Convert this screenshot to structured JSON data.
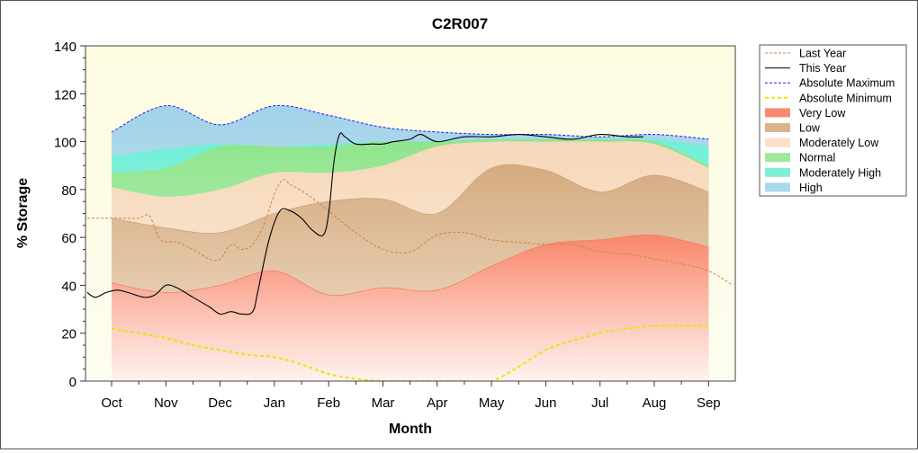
{
  "chart_data": {
    "type": "area",
    "title": "C2R007",
    "xlabel": "Month",
    "ylabel": "% Storage",
    "ylim": [
      0,
      140
    ],
    "yticks": [
      0,
      20,
      40,
      60,
      80,
      100,
      120,
      140
    ],
    "categories": [
      "Oct",
      "Nov",
      "Dec",
      "Jan",
      "Feb",
      "Mar",
      "Apr",
      "May",
      "Jun",
      "Jul",
      "Aug",
      "Sep"
    ],
    "grid": false,
    "legend_position": "right",
    "legend": [
      {
        "label": "Last Year",
        "kind": "line",
        "color": "#c8864a",
        "dash": "3,2"
      },
      {
        "label": "This Year",
        "kind": "line",
        "color": "#000000",
        "dash": ""
      },
      {
        "label": "Absolute Maximum",
        "kind": "line",
        "color": "#1a1aff",
        "dash": "3,2"
      },
      {
        "label": "Absolute Minimum",
        "kind": "line",
        "color": "#e6e600",
        "dash": "4,3"
      },
      {
        "label": "Very Low",
        "kind": "band",
        "color": "#fa8a6e"
      },
      {
        "label": "Low",
        "kind": "band",
        "color": "#d9b48c"
      },
      {
        "label": "Moderately Low",
        "kind": "band",
        "color": "#fde0c8"
      },
      {
        "label": "Normal",
        "kind": "band",
        "color": "#9fe89a"
      },
      {
        "label": "Moderately High",
        "kind": "band",
        "color": "#7ff0d8"
      },
      {
        "label": "High",
        "kind": "band",
        "color": "#a8d8ec"
      }
    ],
    "band_x": [
      0,
      1,
      2,
      3,
      4,
      5,
      6,
      7,
      8,
      9,
      10,
      11
    ],
    "bands": {
      "very_low_top": [
        41,
        37,
        40,
        46,
        36,
        39,
        38,
        48,
        57,
        59,
        61,
        56
      ],
      "low_top": [
        68,
        64,
        62,
        70,
        75,
        76,
        70,
        89,
        88,
        79,
        86,
        79
      ],
      "moderately_low_top": [
        81,
        77,
        80,
        87,
        87,
        90,
        98,
        100,
        100,
        100,
        99,
        89
      ],
      "normal_top": [
        87,
        89,
        98,
        98,
        98,
        100,
        100,
        101,
        101,
        101,
        100,
        90
      ],
      "moderately_high_top": [
        94,
        97,
        99,
        98,
        99,
        100,
        100,
        101,
        101,
        101,
        101,
        98
      ],
      "high_top": [
        104,
        115,
        107,
        115,
        111,
        106,
        104,
        103,
        103,
        102,
        103,
        101
      ]
    },
    "series": [
      {
        "name": "Last Year",
        "x": [
          -0.45,
          0,
          0.3,
          0.5,
          0.7,
          0.9,
          1.2,
          1.5,
          1.8,
          2.0,
          2.2,
          2.4,
          2.6,
          2.8,
          3.0,
          3.15,
          3.3,
          3.6,
          4.0,
          4.5,
          5.0,
          5.5,
          6.0,
          6.5,
          7.0,
          7.5,
          8.0,
          8.5,
          9.0,
          9.5,
          10.0,
          10.5,
          11.0,
          11.45
        ],
        "values": [
          68,
          68,
          68,
          68,
          69,
          59,
          58,
          55,
          51,
          51,
          57,
          55,
          57,
          65,
          78,
          84,
          82,
          78,
          71,
          62,
          55,
          54,
          61,
          62,
          59,
          58,
          57,
          57,
          54,
          53,
          51,
          49,
          46,
          40
        ]
      },
      {
        "name": "This Year",
        "x": [
          -0.45,
          -0.3,
          -0.1,
          0.1,
          0.3,
          0.6,
          0.8,
          1.0,
          1.2,
          1.5,
          1.8,
          2.0,
          2.2,
          2.4,
          2.6,
          2.7,
          2.9,
          3.1,
          3.3,
          3.5,
          3.7,
          3.9,
          4.0,
          4.1,
          4.2,
          4.3,
          4.5,
          4.8,
          5.0,
          5.2,
          5.5,
          5.7,
          6.0,
          6.5,
          7.0,
          7.5,
          8.0,
          8.5,
          9.0,
          9.5,
          9.8
        ],
        "values": [
          37,
          35,
          37,
          38,
          37,
          35,
          36,
          40,
          39,
          35,
          31,
          28,
          29,
          28,
          29,
          38,
          59,
          71,
          71,
          68,
          63,
          61,
          70,
          92,
          103,
          102,
          99,
          99,
          99,
          100,
          101,
          103,
          100,
          102,
          102,
          103,
          102,
          101,
          103,
          102,
          102
        ]
      },
      {
        "name": "Absolute Maximum",
        "x": [
          0,
          1,
          2,
          3,
          4,
          5,
          6,
          7,
          8,
          9,
          10,
          11
        ],
        "values": [
          104,
          115,
          107,
          115,
          111,
          106,
          104,
          103,
          103,
          102,
          103,
          101
        ]
      },
      {
        "name": "Absolute Minimum",
        "x": [
          0,
          0.5,
          1,
          1.5,
          2,
          2.5,
          3,
          3.5,
          4,
          4.5,
          5,
          5.5,
          6,
          6.5,
          7,
          7.5,
          8,
          8.5,
          9,
          9.5,
          10,
          10.5,
          11
        ],
        "values": [
          22,
          20,
          18,
          15,
          13,
          11,
          10,
          7,
          3,
          1,
          0,
          0,
          0,
          0,
          0,
          6,
          13,
          17,
          20,
          22,
          23,
          23,
          23
        ]
      }
    ]
  }
}
